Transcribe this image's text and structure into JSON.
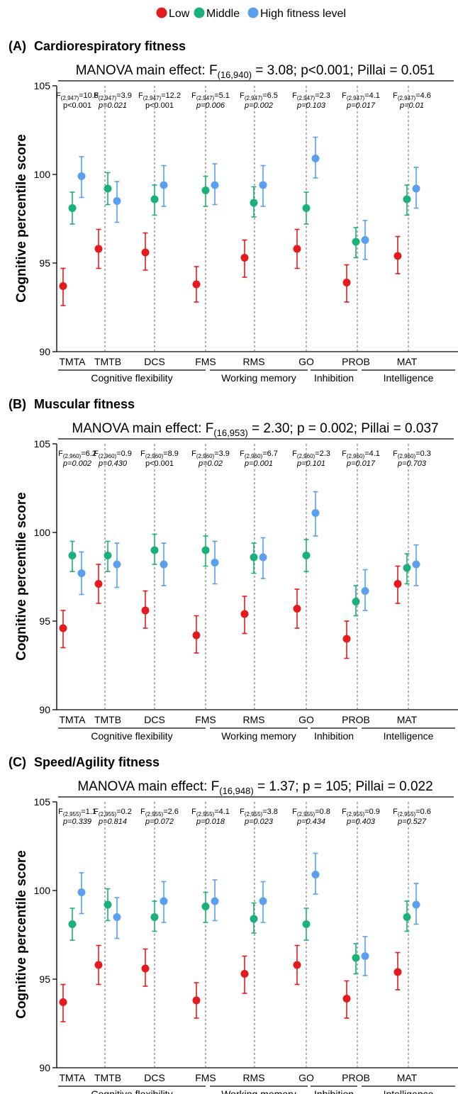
{
  "legend": {
    "items": [
      {
        "label": "Low",
        "color": "#e41a1c"
      },
      {
        "label": "Middle",
        "color": "#1ab07a"
      },
      {
        "label": "High fitness level",
        "color": "#5aa0ef"
      }
    ]
  },
  "chart_data": [
    {
      "type": "scatter",
      "panel_letter": "(A)",
      "title": "Cardiorespiratory fitness",
      "manova": {
        "prefix": "MANOVA main effect: F",
        "sub": "(16,940)",
        "rest": " = 3.08; p<0.001; Pillai = 0.051"
      },
      "ylabel": "Cognitive percentile score",
      "ylim": [
        90,
        105
      ],
      "yticks": [
        90,
        95,
        100,
        105
      ],
      "categories": [
        "TMTA",
        "TMTB",
        "DCS",
        "FMS",
        "RMS",
        "GO",
        "PROB",
        "MAT"
      ],
      "groups": [
        {
          "label": "Cognitive flexibility",
          "from": 0,
          "to": 2
        },
        {
          "label": "Working memory",
          "from": 3,
          "to": 4
        },
        {
          "label": "Inhibition",
          "from": 5,
          "to": 5
        },
        {
          "label": "Intelligence",
          "from": 6,
          "to": 7
        }
      ],
      "stats": [
        {
          "f": "F",
          "sub": "(2,947)",
          "val": "=10.8",
          "p": "p<0.001"
        },
        {
          "f": "F",
          "sub": "(2,947)",
          "val": "=3.9",
          "p": "p=0.021"
        },
        {
          "f": "F",
          "sub": "(2,947)",
          "val": "=12.2",
          "p": "p<0.001"
        },
        {
          "f": "F",
          "sub": "(2,947)",
          "val": "=5.1",
          "p": "p=0.006"
        },
        {
          "f": "F",
          "sub": "(2,947)",
          "val": "=6.5",
          "p": "p=0.002"
        },
        {
          "f": "F",
          "sub": "(2,947)",
          "val": "=2.3",
          "p": "p=0.103"
        },
        {
          "f": "F",
          "sub": "(2,947)",
          "val": "=4.1",
          "p": "p=0.017"
        },
        {
          "f": "F",
          "sub": "(2,947)",
          "val": "=4.6",
          "p": "p=0.01"
        }
      ],
      "series": [
        {
          "name": "Low",
          "color": "#e41a1c",
          "values": [
            93.7,
            95.8,
            95.6,
            93.8,
            95.3,
            95.8,
            93.9,
            95.4
          ],
          "lower": [
            92.6,
            94.7,
            94.6,
            92.8,
            94.2,
            94.7,
            92.8,
            94.4
          ],
          "upper": [
            94.7,
            96.9,
            96.7,
            94.8,
            96.3,
            96.9,
            94.9,
            96.5
          ]
        },
        {
          "name": "Middle",
          "color": "#1ab07a",
          "values": [
            98.1,
            99.2,
            98.6,
            99.1,
            98.4,
            98.1,
            96.2,
            98.6
          ],
          "lower": [
            97.2,
            98.3,
            97.7,
            98.2,
            97.6,
            97.2,
            95.3,
            97.7
          ],
          "upper": [
            99.0,
            100.1,
            99.4,
            99.9,
            99.3,
            99.0,
            97.0,
            99.4
          ]
        },
        {
          "name": "High fitness level",
          "color": "#5aa0ef",
          "values": [
            99.9,
            98.5,
            99.4,
            99.4,
            99.4,
            100.9,
            96.3,
            99.2
          ],
          "lower": [
            98.7,
            97.3,
            98.2,
            98.3,
            98.2,
            99.8,
            95.2,
            98.1
          ],
          "upper": [
            101.0,
            99.6,
            100.5,
            100.6,
            100.5,
            102.1,
            97.4,
            100.4
          ]
        }
      ]
    },
    {
      "type": "scatter",
      "panel_letter": "(B)",
      "title": "Muscular fitness",
      "manova": {
        "prefix": "MANOVA main effect: F",
        "sub": "(16,953)",
        "rest": " = 2.30; p = 0.002; Pillai = 0.037"
      },
      "ylabel": "Cognitive percentile score",
      "ylim": [
        90,
        105
      ],
      "yticks": [
        90,
        95,
        100,
        105
      ],
      "categories": [
        "TMTA",
        "TMTB",
        "DCS",
        "FMS",
        "RMS",
        "GO",
        "PROB",
        "MAT"
      ],
      "groups": [
        {
          "label": "Cognitive flexibility",
          "from": 0,
          "to": 2
        },
        {
          "label": "Working memory",
          "from": 3,
          "to": 4
        },
        {
          "label": "Inhibition",
          "from": 5,
          "to": 5
        },
        {
          "label": "Intelligence",
          "from": 6,
          "to": 7
        }
      ],
      "stats": [
        {
          "f": "F",
          "sub": "(2,960)",
          "val": "=6.2",
          "p": "p=0.002"
        },
        {
          "f": "F",
          "sub": "(2,960)",
          "val": "=0.9",
          "p": "p=0.430"
        },
        {
          "f": "F",
          "sub": "(2,960)",
          "val": "=8.9",
          "p": "p<0.001"
        },
        {
          "f": "F",
          "sub": "(2,960)",
          "val": "=3.9",
          "p": "p=0.02"
        },
        {
          "f": "F",
          "sub": "(2,960)",
          "val": "=6.7",
          "p": "p=0.001"
        },
        {
          "f": "F",
          "sub": "(2,960)",
          "val": "=2.3",
          "p": "p=0.101"
        },
        {
          "f": "F",
          "sub": "(2,960)",
          "val": "=4.1",
          "p": "p=0.017"
        },
        {
          "f": "F",
          "sub": "(2,960)",
          "val": "=0.3",
          "p": "p=0.703"
        }
      ],
      "series": [
        {
          "name": "Low",
          "color": "#e41a1c",
          "values": [
            94.6,
            97.1,
            95.6,
            94.2,
            95.4,
            95.7,
            94.0,
            97.1
          ],
          "lower": [
            93.5,
            96.0,
            94.6,
            93.2,
            94.3,
            94.6,
            92.9,
            96.0
          ],
          "upper": [
            95.6,
            98.2,
            96.7,
            95.3,
            96.4,
            96.8,
            95.0,
            98.1
          ]
        },
        {
          "name": "Middle",
          "color": "#1ab07a",
          "values": [
            98.7,
            98.7,
            99.0,
            99.0,
            98.6,
            98.7,
            96.1,
            98.0
          ],
          "lower": [
            97.8,
            97.8,
            98.2,
            98.1,
            97.7,
            97.8,
            95.3,
            97.1
          ],
          "upper": [
            99.5,
            99.5,
            99.9,
            99.8,
            99.4,
            99.6,
            97.0,
            98.8
          ]
        },
        {
          "name": "High fitness level",
          "color": "#5aa0ef",
          "values": [
            97.7,
            98.2,
            98.2,
            98.3,
            98.6,
            101.1,
            96.7,
            98.2
          ],
          "lower": [
            96.5,
            96.9,
            97.0,
            97.1,
            97.4,
            99.8,
            95.6,
            97.0
          ],
          "upper": [
            98.9,
            99.4,
            99.4,
            99.5,
            99.7,
            102.3,
            97.9,
            99.3
          ]
        }
      ]
    },
    {
      "type": "scatter",
      "panel_letter": "(C)",
      "title": "Speed/Agility fitness",
      "manova": {
        "prefix": "MANOVA main effect: F",
        "sub": "(16,948)",
        "rest": " = 1.37; p = 105; Pillai = 0.022"
      },
      "ylabel": "Cognitive percentile score",
      "ylim": [
        90,
        105
      ],
      "yticks": [
        90,
        95,
        100,
        105
      ],
      "categories": [
        "TMTA",
        "TMTB",
        "DCS",
        "FMS",
        "RMS",
        "GO",
        "PROB",
        "MAT"
      ],
      "groups": [
        {
          "label": "Cognitive flexibility",
          "from": 0,
          "to": 2
        },
        {
          "label": "Working memory",
          "from": 3,
          "to": 4
        },
        {
          "label": "Inhibition",
          "from": 5,
          "to": 5
        },
        {
          "label": "Intelligence",
          "from": 6,
          "to": 7
        }
      ],
      "stats": [
        {
          "f": "F",
          "sub": "(2,955)",
          "val": "=1.1",
          "p": "p=0.339"
        },
        {
          "f": "F",
          "sub": "(2,955)",
          "val": "=0.2",
          "p": "p=0.814"
        },
        {
          "f": "F",
          "sub": "(2,955)",
          "val": "=2.6",
          "p": "p=0.072"
        },
        {
          "f": "F",
          "sub": "(2,955)",
          "val": "=4.1",
          "p": "p=0.018"
        },
        {
          "f": "F",
          "sub": "(2,955)",
          "val": "=3.8",
          "p": "p=0.023"
        },
        {
          "f": "F",
          "sub": "(2,955)",
          "val": "=0.8",
          "p": "p=0.434"
        },
        {
          "f": "F",
          "sub": "(2,955)",
          "val": "=0.9",
          "p": "p=0.403"
        },
        {
          "f": "F",
          "sub": "(2,955)",
          "val": "=0.6",
          "p": "p=0.527"
        }
      ],
      "series": [
        {
          "name": "Low",
          "color": "#e41a1c",
          "values": [
            93.7,
            95.8,
            95.6,
            93.8,
            95.3,
            95.8,
            93.9,
            95.4
          ],
          "lower": [
            92.6,
            94.7,
            94.6,
            92.8,
            94.2,
            94.7,
            92.8,
            94.4
          ],
          "upper": [
            94.7,
            96.9,
            96.7,
            94.8,
            96.3,
            96.9,
            94.9,
            96.5
          ]
        },
        {
          "name": "Middle",
          "color": "#1ab07a",
          "values": [
            98.1,
            99.2,
            98.5,
            99.1,
            98.4,
            98.1,
            96.2,
            98.5
          ],
          "lower": [
            97.2,
            98.3,
            97.7,
            98.2,
            97.6,
            97.2,
            95.3,
            97.7
          ],
          "upper": [
            99.0,
            100.1,
            99.4,
            99.9,
            99.3,
            99.0,
            97.0,
            99.4
          ]
        },
        {
          "name": "High fitness level",
          "color": "#5aa0ef",
          "values": [
            99.9,
            98.5,
            99.4,
            99.4,
            99.4,
            100.9,
            96.3,
            99.2
          ],
          "lower": [
            98.7,
            97.3,
            98.2,
            98.3,
            98.2,
            99.8,
            95.2,
            98.1
          ],
          "upper": [
            101.0,
            99.6,
            100.5,
            100.6,
            100.5,
            102.1,
            97.4,
            100.4
          ]
        }
      ]
    }
  ]
}
